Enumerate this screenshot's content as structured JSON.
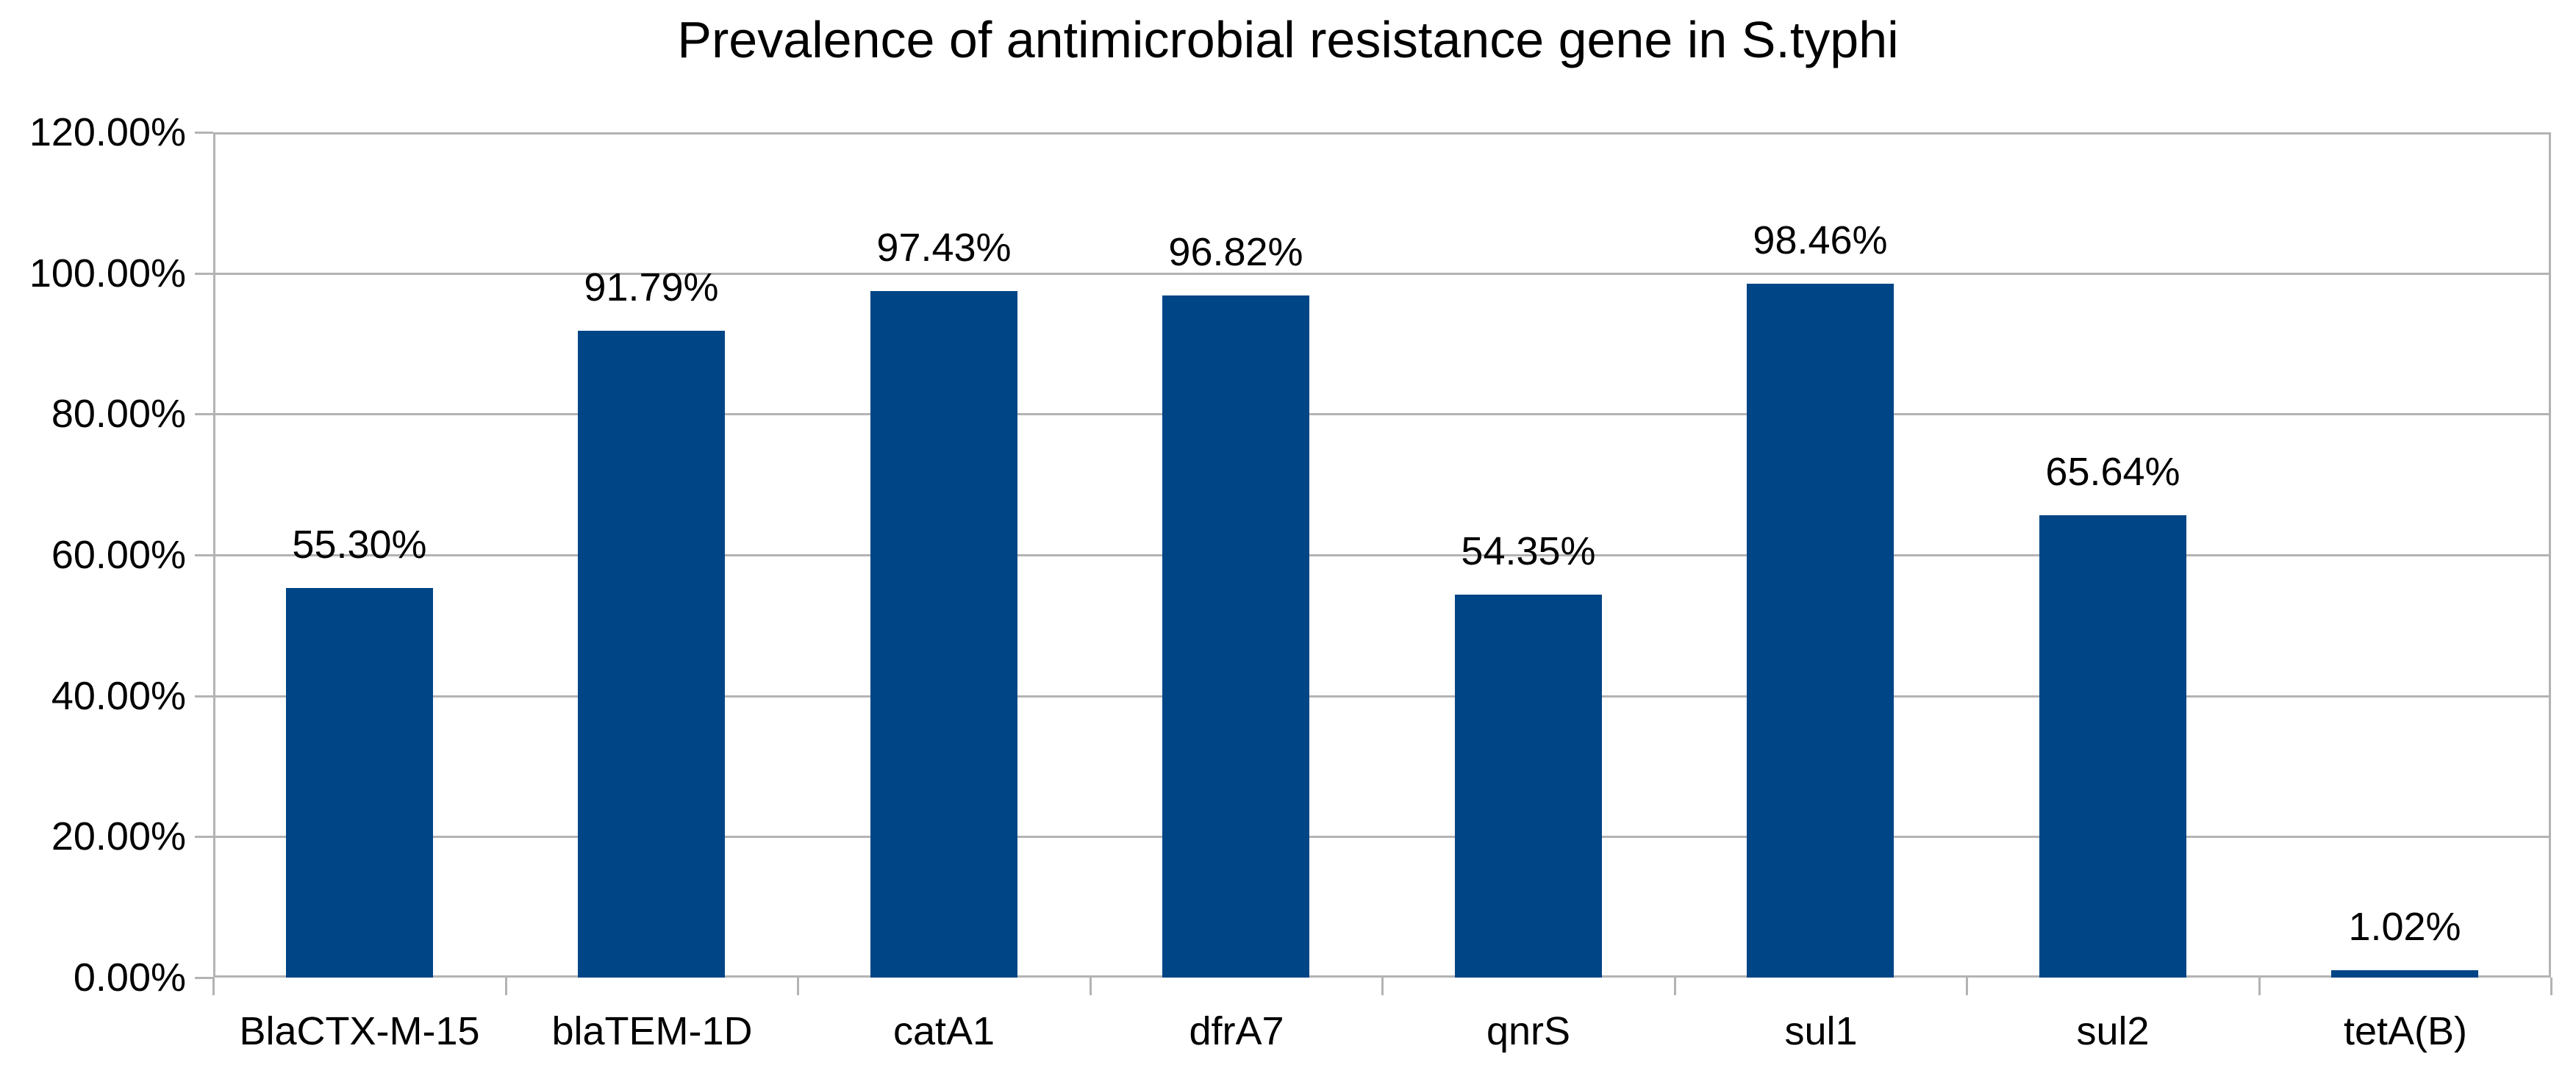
{
  "title": "Prevalence of antimicrobial resistance gene in S.typhi",
  "colors": {
    "bar": "#004586",
    "grid": "#b3b3b3",
    "axis": "#b3b3b3",
    "text": "#000000",
    "background": "#ffffff"
  },
  "chart_data": {
    "type": "bar",
    "title": "Prevalence of antimicrobial resistance gene in S.typhi",
    "categories": [
      "BlaCTX-M-15",
      "blaTEM-1D",
      "catA1",
      "dfrA7",
      "qnrS",
      "sul1",
      "sul2",
      "tetA(B)"
    ],
    "values": [
      55.3,
      91.79,
      97.43,
      96.82,
      54.35,
      98.46,
      65.64,
      1.02
    ],
    "value_labels": [
      "55.30%",
      "91.79%",
      "97.43%",
      "96.82%",
      "54.35%",
      "98.46%",
      "65.64%",
      "1.02%"
    ],
    "xlabel": "",
    "ylabel": "",
    "ylim": [
      0,
      120
    ],
    "y_tick_step": 20,
    "y_tick_labels": [
      "0.00%",
      "20.00%",
      "40.00%",
      "60.00%",
      "80.00%",
      "100.00%",
      "120.00%"
    ],
    "grid": "horizontal",
    "legend": "none",
    "series_color": "#004586"
  }
}
